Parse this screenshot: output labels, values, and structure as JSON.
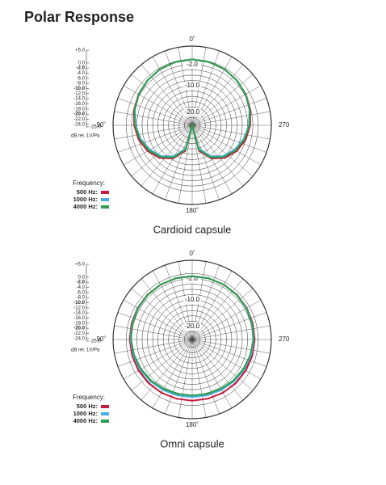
{
  "title": "Polar Response",
  "chart_data": [
    {
      "type": "polar",
      "caption": "Cardioid capsule",
      "unit_label": "dB rel. 1V/Pa",
      "legend_title": "Frequency:",
      "rlim": [
        -25,
        5
      ],
      "rticks": [
        {
          "value": 5,
          "label": "+5.0"
        },
        {
          "value": 0,
          "label": "0.0"
        },
        {
          "value": -2,
          "label": "-2.0"
        },
        {
          "value": -4,
          "label": "-4.0"
        },
        {
          "value": -6,
          "label": "-6.0"
        },
        {
          "value": -8,
          "label": "-8.0"
        },
        {
          "value": -10,
          "label": "-10.0"
        },
        {
          "value": -12,
          "label": "-12.0"
        },
        {
          "value": -14,
          "label": "-14.0"
        },
        {
          "value": -16,
          "label": "-16.0"
        },
        {
          "value": -18,
          "label": "-18.0"
        },
        {
          "value": -20,
          "label": "-20.0"
        },
        {
          "value": -22,
          "label": "-22.0"
        },
        {
          "value": -24,
          "label": "-24.0"
        },
        {
          "value": -25,
          "label": "-25.0"
        }
      ],
      "ring_labels": [
        {
          "value": -2,
          "label": "-2.0"
        },
        {
          "value": -10,
          "label": "-10.0"
        },
        {
          "value": -20,
          "label": "-20.0"
        }
      ],
      "angle_labels": [
        {
          "value": 0,
          "label": "0˚"
        },
        {
          "value": 90,
          "label": "90˚"
        },
        {
          "value": 180,
          "label": "180˚"
        },
        {
          "value": 270,
          "label": "270"
        }
      ],
      "theta": [
        0,
        15,
        30,
        45,
        60,
        75,
        90,
        105,
        120,
        135,
        150,
        165,
        180,
        195,
        210,
        225,
        240,
        255,
        270,
        285,
        300,
        315,
        330,
        345
      ],
      "series": [
        {
          "name": "500 Hz:",
          "color": "#c8193c",
          "values": [
            0,
            -0.2,
            -0.5,
            -1,
            -1.5,
            -2.2,
            -3,
            -4,
            -5.5,
            -7.5,
            -10.5,
            -15,
            -25,
            -15,
            -10.5,
            -7.5,
            -5.5,
            -4,
            -3,
            -2.2,
            -1.5,
            -1,
            -0.5,
            -0.2
          ]
        },
        {
          "name": "1000 Hz:",
          "color": "#4aaee0",
          "values": [
            0,
            -0.2,
            -0.5,
            -1,
            -1.6,
            -2.5,
            -3.5,
            -4.8,
            -6.5,
            -8.5,
            -11.5,
            -16,
            -25,
            -16,
            -11.5,
            -8.5,
            -6.5,
            -4.8,
            -3.5,
            -2.5,
            -1.6,
            -1,
            -0.5,
            -0.2
          ]
        },
        {
          "name": "4000 Hz:",
          "color": "#2e9e4f",
          "values": [
            0,
            -0.2,
            -0.5,
            -1,
            -1.6,
            -2.4,
            -3.3,
            -4.5,
            -6,
            -8,
            -11,
            -15.5,
            -25,
            -15.5,
            -11,
            -8,
            -6,
            -4.5,
            -3.3,
            -2.4,
            -1.6,
            -1,
            -0.5,
            -0.2
          ]
        }
      ]
    },
    {
      "type": "polar",
      "caption": "Omni capsule",
      "unit_label": "dB rel. 1V/Pa",
      "legend_title": "Frequency:",
      "rlim": [
        -25,
        5
      ],
      "rticks": [
        {
          "value": 5,
          "label": "+5.0"
        },
        {
          "value": 0,
          "label": "0.0"
        },
        {
          "value": -2,
          "label": "-2.0"
        },
        {
          "value": -4,
          "label": "-4.0"
        },
        {
          "value": -6,
          "label": "-6.0"
        },
        {
          "value": -8,
          "label": "-8.0"
        },
        {
          "value": -10,
          "label": "-10.0"
        },
        {
          "value": -12,
          "label": "-12.0"
        },
        {
          "value": -14,
          "label": "-14.0"
        },
        {
          "value": -16,
          "label": "-16.0"
        },
        {
          "value": -18,
          "label": "-18.0"
        },
        {
          "value": -20,
          "label": "-20.0"
        },
        {
          "value": -22,
          "label": "-22.0"
        },
        {
          "value": -24,
          "label": "-24.0"
        },
        {
          "value": -25,
          "label": "-25.0"
        }
      ],
      "ring_labels": [
        {
          "value": -2,
          "label": "-2.0"
        },
        {
          "value": -10,
          "label": "-10.0"
        },
        {
          "value": -20,
          "label": "-20.0"
        }
      ],
      "angle_labels": [
        {
          "value": 0,
          "label": "0˚"
        },
        {
          "value": 90,
          "label": "90˚"
        },
        {
          "value": 180,
          "label": "180˚"
        },
        {
          "value": 270,
          "label": "270"
        }
      ],
      "theta": [
        0,
        15,
        30,
        45,
        60,
        75,
        90,
        105,
        120,
        135,
        150,
        165,
        180,
        195,
        210,
        225,
        240,
        255,
        270,
        285,
        300,
        315,
        330,
        345
      ],
      "series": [
        {
          "name": "500 Hz:",
          "color": "#c8193c",
          "values": [
            -1,
            -1,
            -1,
            -1,
            -1.1,
            -1.2,
            -1.3,
            -1.4,
            -1.5,
            -1.6,
            -1.7,
            -1.8,
            -1.8,
            -1.8,
            -1.7,
            -1.6,
            -1.5,
            -1.4,
            -1.3,
            -1.2,
            -1.1,
            -1,
            -1,
            -1
          ]
        },
        {
          "name": "1000 Hz:",
          "color": "#4aaee0",
          "values": [
            -1,
            -1,
            -1,
            -1.1,
            -1.2,
            -1.4,
            -1.6,
            -1.9,
            -2.2,
            -2.6,
            -2.9,
            -3.1,
            -3.2,
            -3.1,
            -2.9,
            -2.6,
            -2.2,
            -1.9,
            -1.6,
            -1.4,
            -1.2,
            -1.1,
            -1,
            -1
          ]
        },
        {
          "name": "4000 Hz:",
          "color": "#2e9e4f",
          "values": [
            -1,
            -1,
            -1,
            -1.1,
            -1.3,
            -1.5,
            -1.8,
            -2.2,
            -2.6,
            -3,
            -3.4,
            -3.7,
            -3.8,
            -3.7,
            -3.4,
            -3,
            -2.6,
            -2.2,
            -1.8,
            -1.5,
            -1.3,
            -1.1,
            -1,
            -1
          ]
        }
      ]
    }
  ]
}
